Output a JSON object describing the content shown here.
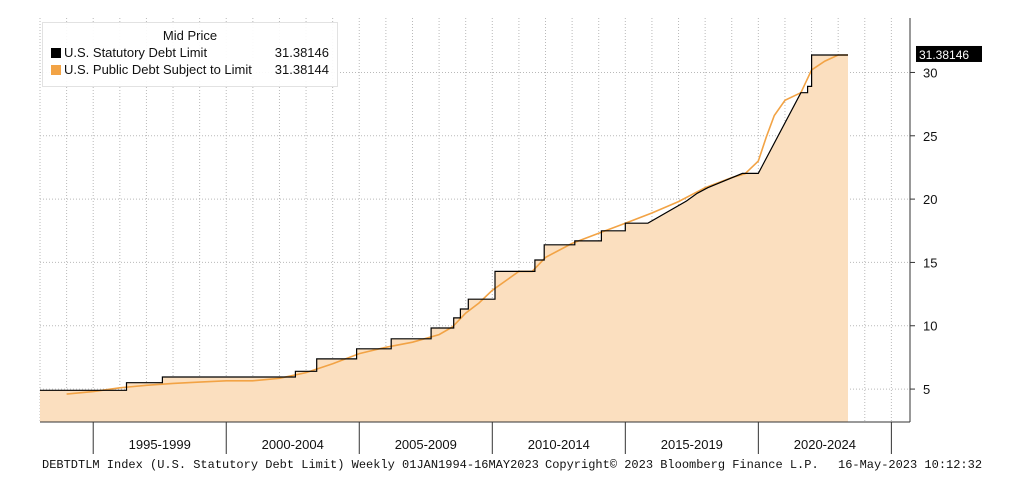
{
  "chart_data": {
    "type": "area",
    "legend_title": "Mid Price",
    "legend_placement": "top-left",
    "grid": true,
    "ylim": [
      2.4,
      34.3
    ],
    "xlim": [
      1993.0,
      2025.7
    ],
    "y_ticks": [
      5,
      10,
      15,
      20,
      25,
      30
    ],
    "x_periods": [
      "1995-1999",
      "2000-2004",
      "2005-2009",
      "2010-2014",
      "2015-2019",
      "2020-2024"
    ],
    "last_value_label": "31.38146",
    "series": [
      {
        "name": "U.S. Statutory Debt Limit",
        "color": "#000000",
        "last_value": "31.38146",
        "points": [
          [
            1993.0,
            4.9
          ],
          [
            1996.25,
            4.9
          ],
          [
            1996.25,
            5.5
          ],
          [
            1997.6,
            5.5
          ],
          [
            1997.6,
            5.95
          ],
          [
            2002.6,
            5.95
          ],
          [
            2002.6,
            6.4
          ],
          [
            2003.4,
            6.4
          ],
          [
            2003.4,
            7.38
          ],
          [
            2004.9,
            7.38
          ],
          [
            2004.9,
            8.18
          ],
          [
            2006.2,
            8.18
          ],
          [
            2006.2,
            8.97
          ],
          [
            2007.7,
            8.97
          ],
          [
            2007.7,
            9.82
          ],
          [
            2008.55,
            9.82
          ],
          [
            2008.55,
            10.62
          ],
          [
            2008.8,
            10.62
          ],
          [
            2008.8,
            11.32
          ],
          [
            2009.1,
            11.32
          ],
          [
            2009.1,
            12.1
          ],
          [
            2010.1,
            12.1
          ],
          [
            2010.1,
            14.29
          ],
          [
            2011.6,
            14.29
          ],
          [
            2011.6,
            15.19
          ],
          [
            2011.95,
            15.19
          ],
          [
            2011.95,
            16.39
          ],
          [
            2013.1,
            16.39
          ],
          [
            2013.1,
            16.7
          ],
          [
            2014.1,
            16.7
          ],
          [
            2014.1,
            17.5
          ],
          [
            2015.0,
            17.5
          ],
          [
            2015.0,
            18.1
          ],
          [
            2015.85,
            18.1
          ],
          [
            2017.3,
            19.85
          ],
          [
            2017.7,
            20.46
          ],
          [
            2018.1,
            20.9
          ],
          [
            2019.4,
            22.03
          ],
          [
            2020.0,
            22.03
          ],
          [
            2021.6,
            28.4
          ],
          [
            2021.85,
            28.4
          ],
          [
            2021.85,
            28.9
          ],
          [
            2022.0,
            28.9
          ],
          [
            2022.0,
            31.38
          ],
          [
            2023.37,
            31.38
          ]
        ]
      },
      {
        "name": "U.S. Public Debt Subject to Limit",
        "color": "#f2a345",
        "fill": "#fbdfbf",
        "last_value": "31.38144",
        "points": [
          [
            1994.0,
            4.6
          ],
          [
            1995.0,
            4.8
          ],
          [
            1996.0,
            5.1
          ],
          [
            1997.0,
            5.3
          ],
          [
            1998.0,
            5.45
          ],
          [
            1999.0,
            5.55
          ],
          [
            2000.0,
            5.65
          ],
          [
            2001.0,
            5.65
          ],
          [
            2002.0,
            5.85
          ],
          [
            2003.0,
            6.3
          ],
          [
            2004.0,
            7.0
          ],
          [
            2005.0,
            7.8
          ],
          [
            2006.0,
            8.3
          ],
          [
            2007.0,
            8.7
          ],
          [
            2008.0,
            9.3
          ],
          [
            2008.5,
            9.9
          ],
          [
            2009.0,
            11.0
          ],
          [
            2009.5,
            11.8
          ],
          [
            2010.0,
            12.8
          ],
          [
            2011.0,
            14.29
          ],
          [
            2011.5,
            14.29
          ],
          [
            2012.0,
            15.4
          ],
          [
            2013.0,
            16.5
          ],
          [
            2014.0,
            17.3
          ],
          [
            2015.0,
            18.1
          ],
          [
            2016.0,
            18.9
          ],
          [
            2017.0,
            19.8
          ],
          [
            2018.0,
            20.9
          ],
          [
            2019.0,
            21.7
          ],
          [
            2019.5,
            22.0
          ],
          [
            2020.0,
            23.0
          ],
          [
            2020.3,
            24.9
          ],
          [
            2020.6,
            26.6
          ],
          [
            2021.0,
            27.8
          ],
          [
            2021.6,
            28.4
          ],
          [
            2022.0,
            30.2
          ],
          [
            2022.5,
            30.9
          ],
          [
            2023.0,
            31.38
          ],
          [
            2023.37,
            31.38
          ]
        ]
      }
    ]
  },
  "footer": {
    "index": "DEBTDTLM Index (U.S. Statutory Debt Limit)  Weekly 01JAN1994-16MAY2023",
    "copyright": "Copyright© 2023 Bloomberg Finance L.P.",
    "timestamp": "16-May-2023 10:12:32"
  }
}
